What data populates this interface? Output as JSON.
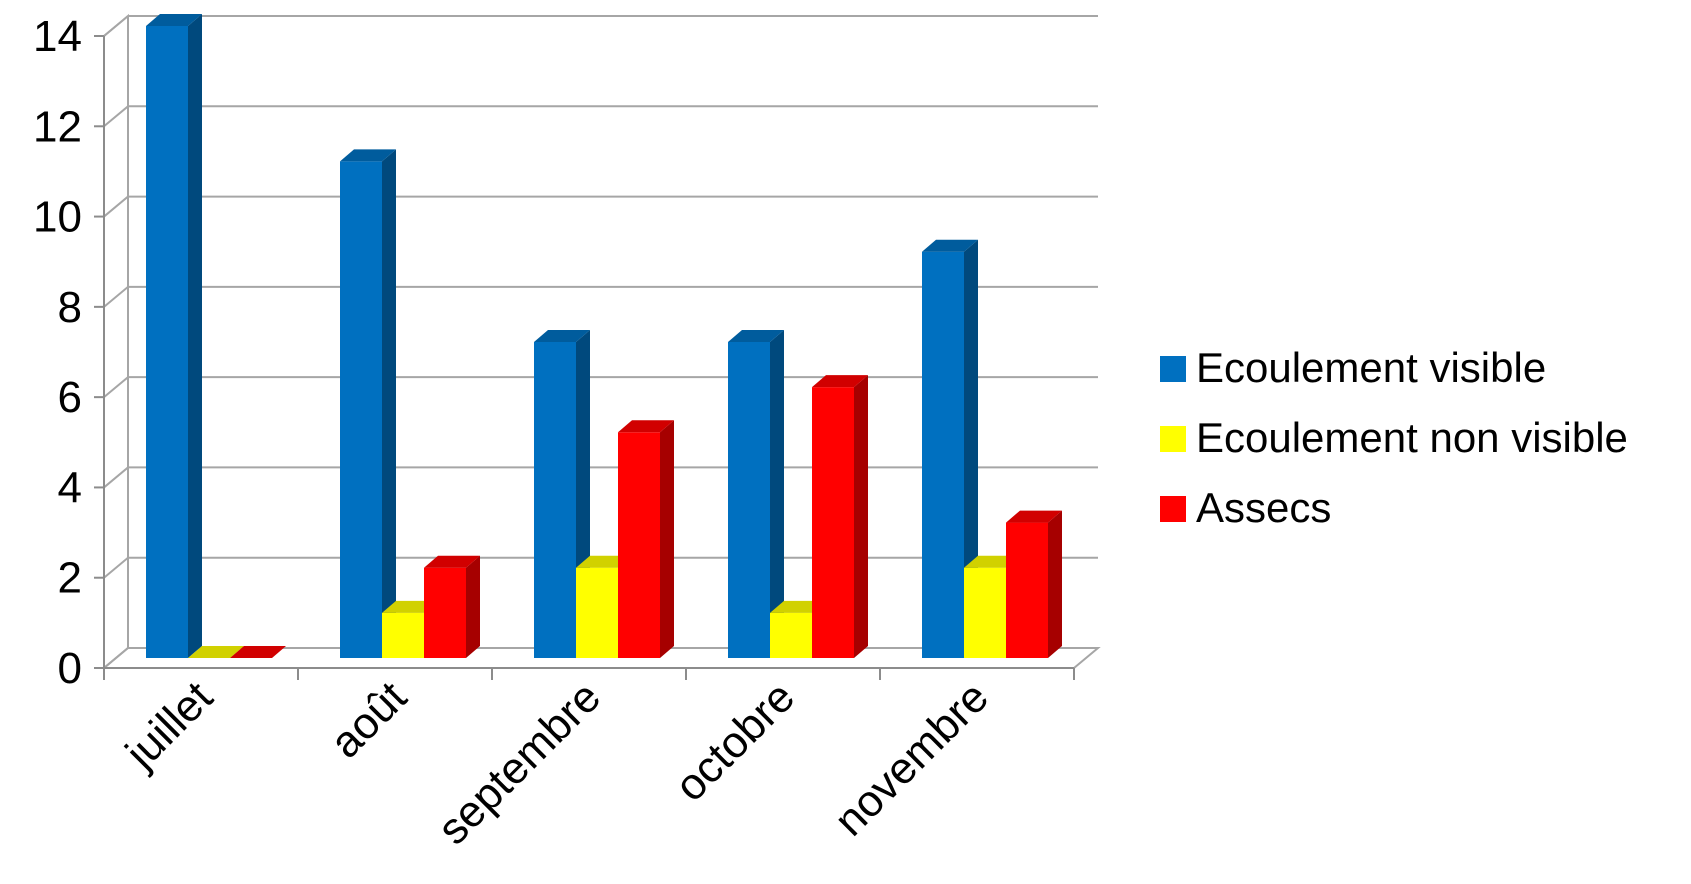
{
  "chart_data": {
    "type": "bar",
    "categories": [
      "juillet",
      "août",
      "septembre",
      "octobre",
      "novembre"
    ],
    "series": [
      {
        "name": "Ecoulement visible",
        "values": [
          14,
          11,
          7,
          7,
          9
        ],
        "color": "#0070C0"
      },
      {
        "name": "Ecoulement non visible",
        "values": [
          0,
          1,
          2,
          1,
          2
        ],
        "color": "#FFFF00"
      },
      {
        "name": "Assecs",
        "values": [
          0,
          2,
          5,
          6,
          3
        ],
        "color": "#FF0000"
      }
    ],
    "ylim": [
      0,
      14
    ],
    "yticks": [
      0,
      2,
      4,
      6,
      8,
      10,
      12,
      14
    ],
    "grid": true,
    "legend": "right",
    "style": "3d-clustered-column"
  }
}
